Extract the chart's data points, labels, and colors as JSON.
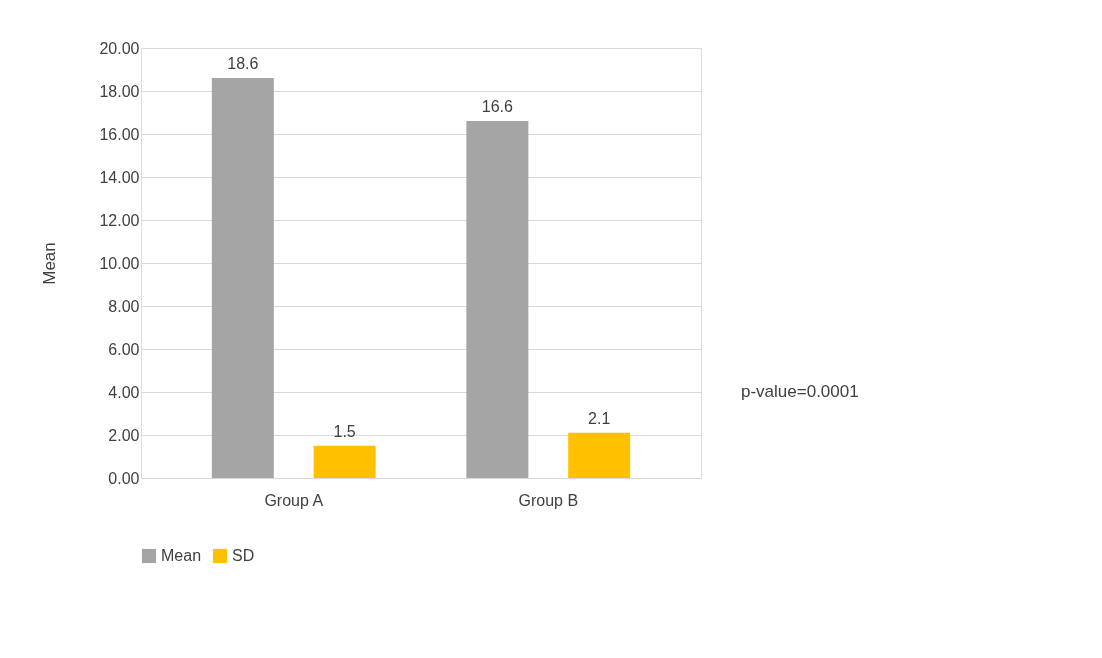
{
  "chart_data": {
    "type": "bar",
    "ylabel": "Mean",
    "categories": [
      "Group A",
      "Group B"
    ],
    "series": [
      {
        "name": "Mean",
        "color": "#a5a5a5",
        "values": [
          18.6,
          16.6
        ]
      },
      {
        "name": "SD",
        "color": "#ffc000",
        "values": [
          1.5,
          2.1
        ]
      }
    ],
    "ylim": [
      0,
      20
    ],
    "yticks": [
      {
        "value": 0,
        "label": "0.00"
      },
      {
        "value": 2,
        "label": "2.00"
      },
      {
        "value": 4,
        "label": "4.00"
      },
      {
        "value": 6,
        "label": "6.00"
      },
      {
        "value": 8,
        "label": "8.00"
      },
      {
        "value": 10,
        "label": "10.00"
      },
      {
        "value": 12,
        "label": "12.00"
      },
      {
        "value": 14,
        "label": "14.00"
      },
      {
        "value": 16,
        "label": "16.00"
      },
      {
        "value": 18,
        "label": "18.00"
      },
      {
        "value": 20,
        "label": "20.00"
      }
    ],
    "grid": "y",
    "legend": "bottom",
    "data_labels": true,
    "annotations": [
      "p-value=0.0001"
    ]
  }
}
